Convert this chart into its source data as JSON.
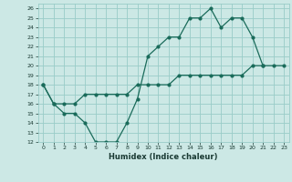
{
  "xlabel": "Humidex (Indice chaleur)",
  "bg_color": "#cce8e5",
  "grid_color": "#99ccc8",
  "line_color": "#1a6b5a",
  "xlim": [
    -0.5,
    23.5
  ],
  "ylim": [
    12,
    26.5
  ],
  "yticks": [
    12,
    13,
    14,
    15,
    16,
    17,
    18,
    19,
    20,
    21,
    22,
    23,
    24,
    25,
    26
  ],
  "xticks": [
    0,
    1,
    2,
    3,
    4,
    5,
    6,
    7,
    8,
    9,
    10,
    11,
    12,
    13,
    14,
    15,
    16,
    17,
    18,
    19,
    20,
    21,
    22,
    23
  ],
  "line1_x": [
    0,
    1,
    2,
    3,
    4,
    5,
    6,
    7,
    8,
    9,
    10,
    11,
    12,
    13,
    14,
    15,
    16,
    17,
    18,
    19,
    20,
    21
  ],
  "line1_y": [
    18,
    16,
    15,
    15,
    14,
    12,
    12,
    12,
    14,
    16.5,
    21,
    22,
    23,
    23,
    25,
    25,
    26,
    24,
    25,
    25,
    23,
    20
  ],
  "line2_x": [
    0,
    1,
    2,
    3,
    4,
    5,
    6,
    7,
    8,
    9,
    10,
    11,
    12,
    13,
    14,
    15,
    16,
    17,
    18,
    19,
    20,
    21,
    22,
    23
  ],
  "line2_y": [
    18,
    16,
    16,
    16,
    17,
    17,
    17,
    17,
    17,
    18,
    18,
    18,
    18,
    19,
    19,
    19,
    19,
    19,
    19,
    19,
    20,
    20,
    20,
    20
  ]
}
